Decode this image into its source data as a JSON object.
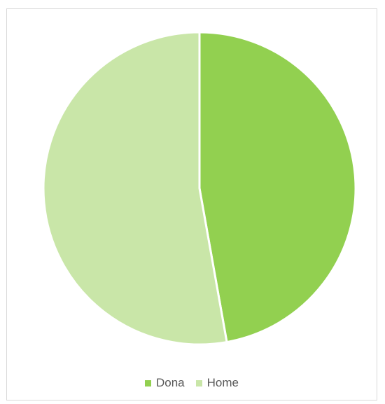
{
  "chart_data": {
    "type": "pie",
    "categories": [
      "Dona",
      "Home"
    ],
    "values": [
      47.2,
      52.8
    ],
    "colors": [
      "#92d050",
      "#c9e6a8"
    ],
    "title": "",
    "legend_position": "bottom",
    "start_angle_deg": 0,
    "direction": "clockwise",
    "slice_border_color": "#ffffff"
  }
}
